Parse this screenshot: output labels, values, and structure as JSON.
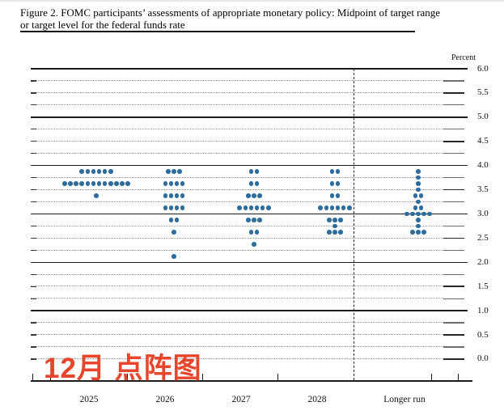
{
  "figure": {
    "title_line1": "Figure 2. FOMC participants’ assessments of appropriate monetary policy: Midpoint of target range",
    "title_line2": "or target level for the federal funds rate"
  },
  "annotation": {
    "text": "12月 点阵图",
    "color": "#e8462c"
  },
  "chart_data": {
    "type": "scatter",
    "title": "FOMC participants’ assessments of appropriate monetary policy: Midpoint of target range or target level for the federal funds rate",
    "dot_color": "#2d6d9e",
    "ylim": [
      0.0,
      6.0
    ],
    "grid": "dotted quarter-point lines, solid lines at whole percents",
    "solid_line_values": [
      6.0,
      5.0,
      4.0,
      3.0,
      2.0,
      1.0
    ],
    "y_axis": {
      "title": "Percent",
      "labels": [
        "6.0",
        "5.5",
        "5.0",
        "4.5",
        "4.0",
        "3.5",
        "3.0",
        "2.5",
        "2.0",
        "1.5",
        "1.0",
        "0.5",
        "0.0"
      ],
      "grid_step": 0.25,
      "label_step": 0.5
    },
    "x_axis": {
      "labels": [
        "2025",
        "2026",
        "2027",
        "2028",
        "Longer run"
      ],
      "divider_before": "Longer run"
    },
    "categories": [
      "2025",
      "2026",
      "2027",
      "2028",
      "Longer run"
    ],
    "series": [
      {
        "category": "2025",
        "dots": [
          {
            "rate": 3.875,
            "count": 6
          },
          {
            "rate": 3.625,
            "count": 12
          },
          {
            "rate": 3.375,
            "count": 1
          }
        ]
      },
      {
        "category": "2026",
        "dots": [
          {
            "rate": 3.875,
            "count": 3
          },
          {
            "rate": 3.625,
            "count": 4
          },
          {
            "rate": 3.375,
            "count": 4
          },
          {
            "rate": 3.125,
            "count": 4
          },
          {
            "rate": 2.875,
            "count": 2
          },
          {
            "rate": 2.625,
            "count": 1
          },
          {
            "rate": 2.125,
            "count": 1
          }
        ]
      },
      {
        "category": "2027",
        "dots": [
          {
            "rate": 3.875,
            "count": 2
          },
          {
            "rate": 3.625,
            "count": 2
          },
          {
            "rate": 3.375,
            "count": 3
          },
          {
            "rate": 3.125,
            "count": 6
          },
          {
            "rate": 2.875,
            "count": 3
          },
          {
            "rate": 2.625,
            "count": 2
          },
          {
            "rate": 2.375,
            "count": 1
          }
        ]
      },
      {
        "category": "2028",
        "dots": [
          {
            "rate": 3.875,
            "count": 2
          },
          {
            "rate": 3.625,
            "count": 2
          },
          {
            "rate": 3.375,
            "count": 2
          },
          {
            "rate": 3.125,
            "count": 6
          },
          {
            "rate": 2.875,
            "count": 3
          },
          {
            "rate": 2.75,
            "count": 1
          },
          {
            "rate": 2.625,
            "count": 3
          }
        ]
      },
      {
        "category": "Longer run",
        "dots": [
          {
            "rate": 3.875,
            "count": 1
          },
          {
            "rate": 3.75,
            "count": 1
          },
          {
            "rate": 3.625,
            "count": 1
          },
          {
            "rate": 3.5,
            "count": 1
          },
          {
            "rate": 3.375,
            "count": 2
          },
          {
            "rate": 3.25,
            "count": 1
          },
          {
            "rate": 3.125,
            "count": 2
          },
          {
            "rate": 3.0,
            "count": 5
          },
          {
            "rate": 2.875,
            "count": 1
          },
          {
            "rate": 2.75,
            "count": 1
          },
          {
            "rate": 2.625,
            "count": 3
          }
        ]
      }
    ]
  }
}
